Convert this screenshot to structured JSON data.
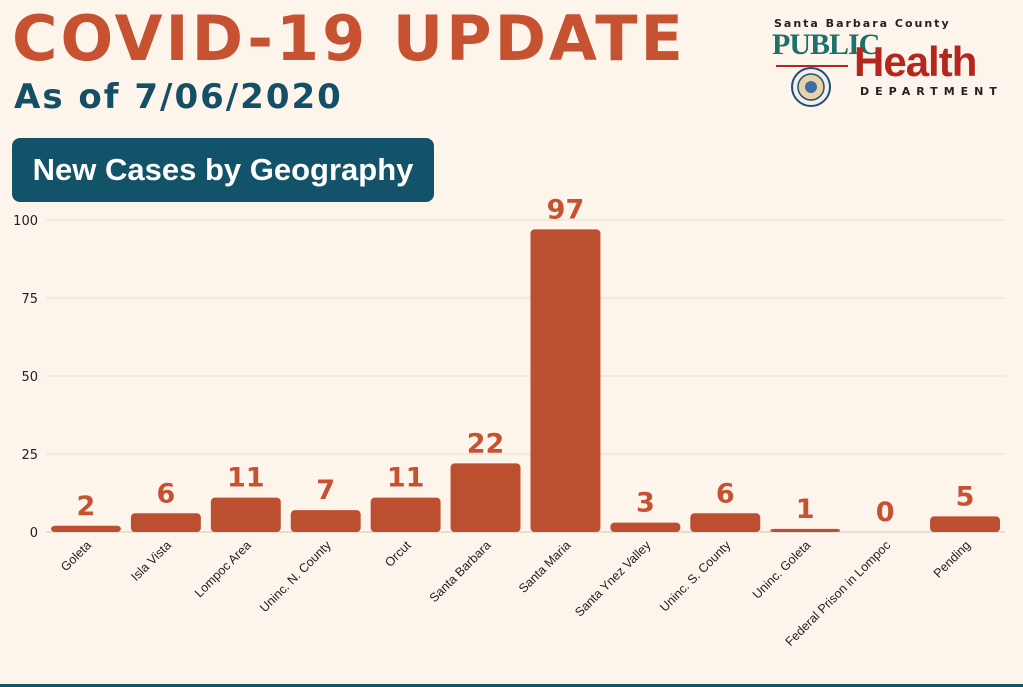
{
  "header": {
    "title": "COVID-19 UPDATE",
    "subtitle": "As of 7/06/2020",
    "section": "New Cases by Geography"
  },
  "logo": {
    "county": "Santa Barbara County",
    "public": "PUBLIC",
    "health": "Health",
    "department": "DEPARTMENT"
  },
  "colors": {
    "bar": "#bd4f31",
    "label": "#c75232",
    "accent": "#135369"
  },
  "chart_data": {
    "type": "bar",
    "title": "New Cases by Geography",
    "xlabel": "",
    "ylabel": "",
    "categories": [
      "Goleta",
      "Isla Vista",
      "Lompoc Area",
      "Uninc. N. County",
      "Orcut",
      "Santa Barbara",
      "Santa Maria",
      "Santa Ynez Valley",
      "Uninc. S. County",
      "Uninc. Goleta",
      "Federal Prison in Lompoc",
      "Pending"
    ],
    "values": [
      2,
      6,
      11,
      7,
      11,
      22,
      97,
      3,
      6,
      1,
      0,
      5
    ],
    "ylim": [
      0,
      100
    ],
    "yticks": [
      0,
      25,
      50,
      75,
      100
    ],
    "grid": true,
    "legend": "none"
  }
}
